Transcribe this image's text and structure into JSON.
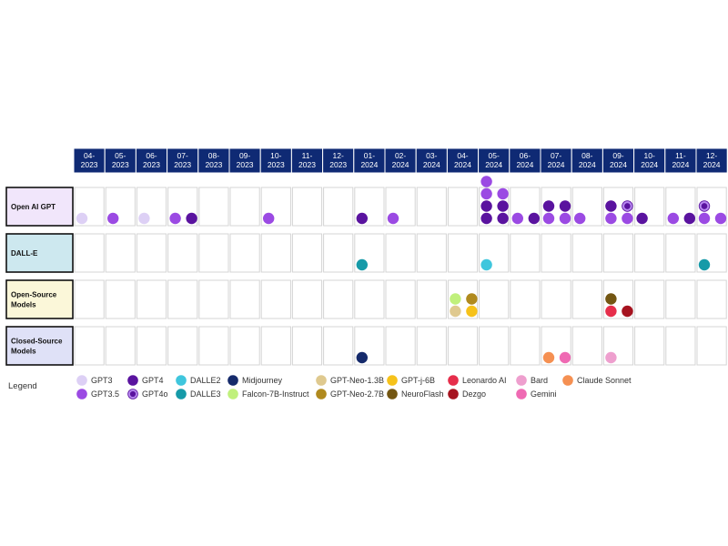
{
  "months": [
    "04-\n2023",
    "05-\n2023",
    "06-\n2023",
    "07-\n2023",
    "08-\n2023",
    "09-\n2023",
    "10-\n2023",
    "11-\n2023",
    "12-\n2023",
    "01-\n2024",
    "02-\n2024",
    "03-\n2024",
    "04-\n2024",
    "05-\n2024",
    "06-\n2024",
    "07-\n2024",
    "08-\n2024",
    "09-\n2024",
    "10-\n2024",
    "11-\n2024",
    "12-\n2024"
  ],
  "rows": [
    {
      "key": "openai",
      "label": "Open AI GPT",
      "color": "#f1e6fb"
    },
    {
      "key": "dalle",
      "label": "DALL-E",
      "color": "#cde8ef"
    },
    {
      "key": "opensource",
      "label": "Open-Source\nModels",
      "color": "#fbf7d9"
    },
    {
      "key": "closedsource",
      "label": "Closed-Source\nModels",
      "color": "#dfe1f7"
    }
  ],
  "legend": {
    "title": "Legend",
    "items": [
      {
        "key": "GPT3",
        "label": "GPT3",
        "color": "#ddd0f5"
      },
      {
        "key": "GPT3.5",
        "label": "GPT3.5",
        "color": "#9b4ae3"
      },
      {
        "key": "GPT4",
        "label": "GPT4",
        "color": "#5a139f"
      },
      {
        "key": "GPT4o",
        "label": "GPT4o",
        "color": "#5a139f",
        "ring": "#b889f0"
      },
      {
        "key": "DALLE2",
        "label": "DALLE2",
        "color": "#3fc6dd"
      },
      {
        "key": "DALLE3",
        "label": "DALLE3",
        "color": "#169aa8"
      },
      {
        "key": "Midjourney",
        "label": "Midjourney",
        "color": "#152a6b"
      },
      {
        "key": "Falcon-7B-Instruct",
        "label": "Falcon-7B-Instruct",
        "color": "#c0f07c"
      },
      {
        "key": "GPT-Neo-1.3B",
        "label": "GPT-Neo-1.3B",
        "color": "#dfc98f"
      },
      {
        "key": "GPT-Neo-2.7B",
        "label": "GPT-Neo-2.7B",
        "color": "#b08a1e"
      },
      {
        "key": "GPT-j-6B",
        "label": "GPT-j-6B",
        "color": "#f6c21a"
      },
      {
        "key": "NeuroFlash",
        "label": "NeuroFlash",
        "color": "#735612"
      },
      {
        "key": "Leonardo AI",
        "label": "Leonardo AI",
        "color": "#e62e4b"
      },
      {
        "key": "Dezgo",
        "label": "Dezgo",
        "color": "#a6131f"
      },
      {
        "key": "Bard",
        "label": "Bard",
        "color": "#ee9fce"
      },
      {
        "key": "Gemini",
        "label": "Gemini",
        "color": "#ef6ab3"
      },
      {
        "key": "Claude Sonnet",
        "label": "Claude Sonnet",
        "color": "#f59052"
      }
    ]
  },
  "releases": [
    {
      "row": "openai",
      "month": 0,
      "stack": [
        [
          "GPT3"
        ]
      ]
    },
    {
      "row": "openai",
      "month": 1,
      "stack": [
        [
          "GPT3.5"
        ]
      ]
    },
    {
      "row": "openai",
      "month": 2,
      "stack": [
        [
          "GPT3"
        ]
      ]
    },
    {
      "row": "openai",
      "month": 3,
      "stack": [
        [
          "GPT3.5",
          "GPT4"
        ]
      ]
    },
    {
      "row": "openai",
      "month": 6,
      "stack": [
        [
          "GPT3.5"
        ]
      ]
    },
    {
      "row": "openai",
      "month": 9,
      "stack": [
        [
          "GPT4"
        ]
      ]
    },
    {
      "row": "openai",
      "month": 10,
      "stack": [
        [
          "GPT3.5"
        ]
      ]
    },
    {
      "row": "openai",
      "month": 13,
      "stack": [
        [
          "GPT4",
          "GPT4"
        ],
        [
          "GPT4",
          "GPT4"
        ],
        [
          "GPT3.5",
          "GPT3.5"
        ],
        [
          "GPT3.5"
        ]
      ]
    },
    {
      "row": "openai",
      "month": 14,
      "stack": [
        [
          "GPT3.5",
          "GPT4"
        ]
      ]
    },
    {
      "row": "openai",
      "month": 15,
      "stack": [
        [
          "GPT3.5",
          "GPT3.5"
        ],
        [
          "GPT4",
          "GPT4"
        ]
      ]
    },
    {
      "row": "openai",
      "month": 16,
      "stack": [
        [
          "GPT3.5"
        ]
      ]
    },
    {
      "row": "openai",
      "month": 17,
      "stack": [
        [
          "GPT3.5",
          "GPT3.5"
        ],
        [
          "GPT4",
          "GPT4o"
        ]
      ]
    },
    {
      "row": "openai",
      "month": 18,
      "stack": [
        [
          "GPT4"
        ]
      ]
    },
    {
      "row": "openai",
      "month": 19,
      "stack": [
        [
          "GPT3.5",
          "GPT4"
        ]
      ]
    },
    {
      "row": "openai",
      "month": 20,
      "stack": [
        [
          "GPT3.5",
          "GPT3.5"
        ],
        [
          "GPT4o"
        ]
      ]
    },
    {
      "row": "dalle",
      "month": 9,
      "stack": [
        [
          "DALLE3"
        ]
      ]
    },
    {
      "row": "dalle",
      "month": 13,
      "stack": [
        [
          "DALLE2"
        ]
      ]
    },
    {
      "row": "dalle",
      "month": 20,
      "stack": [
        [
          "DALLE3"
        ]
      ]
    },
    {
      "row": "opensource",
      "month": 12,
      "stack": [
        [
          "GPT-Neo-1.3B",
          "GPT-j-6B"
        ],
        [
          "Falcon-7B-Instruct",
          "GPT-Neo-2.7B"
        ]
      ]
    },
    {
      "row": "opensource",
      "month": 17,
      "stack": [
        [
          "Leonardo AI",
          "Dezgo"
        ],
        [
          "NeuroFlash"
        ]
      ]
    },
    {
      "row": "closedsource",
      "month": 9,
      "stack": [
        [
          "Midjourney"
        ]
      ]
    },
    {
      "row": "closedsource",
      "month": 15,
      "stack": [
        [
          "Claude Sonnet",
          "Gemini"
        ]
      ]
    },
    {
      "row": "closedsource",
      "month": 17,
      "stack": [
        [
          "Bard"
        ]
      ]
    }
  ]
}
